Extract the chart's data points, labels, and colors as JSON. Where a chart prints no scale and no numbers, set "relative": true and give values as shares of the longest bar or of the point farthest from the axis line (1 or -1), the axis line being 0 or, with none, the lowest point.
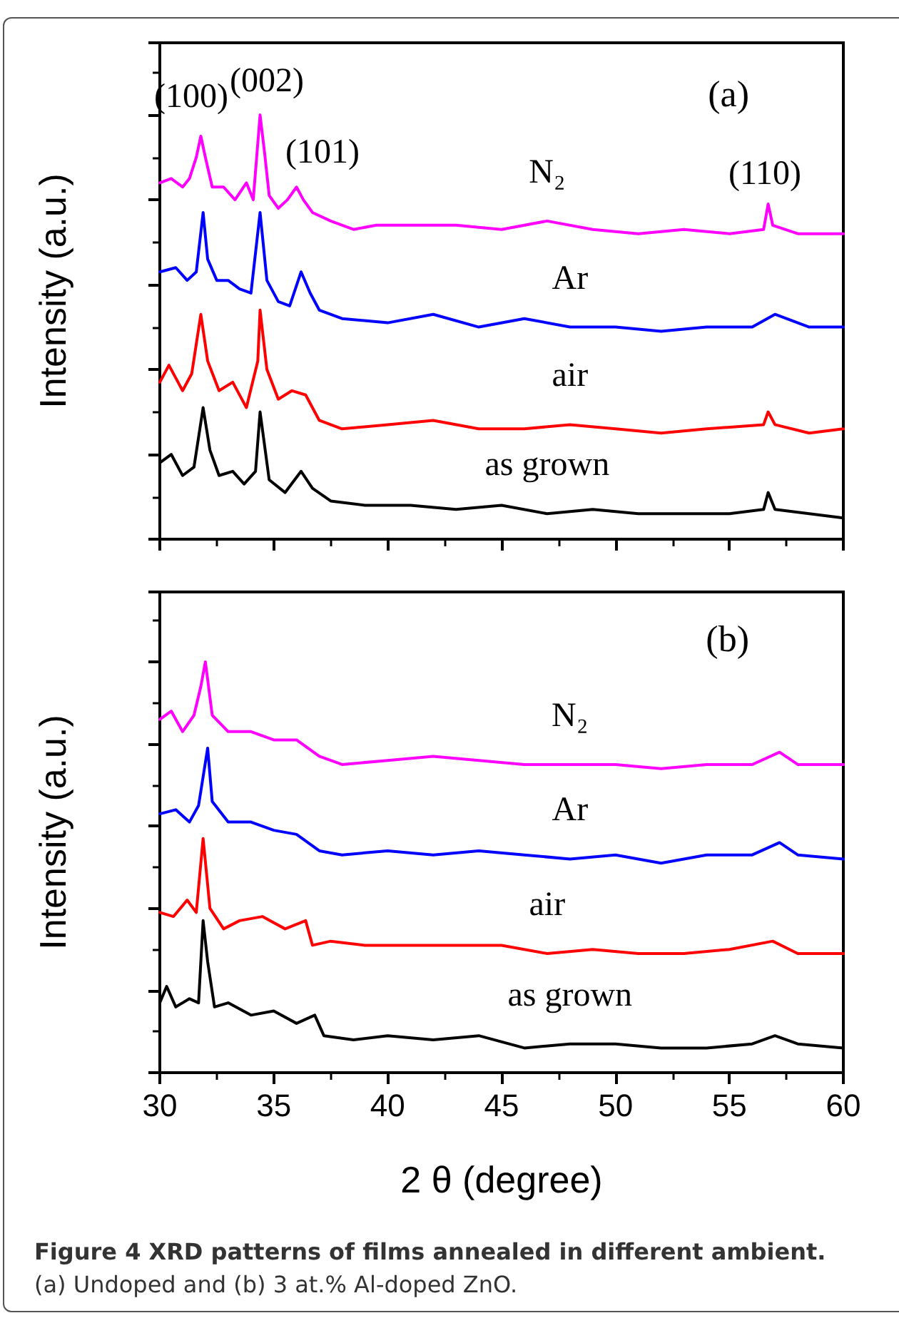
{
  "chart_data": [
    {
      "type": "line",
      "title": "(a)",
      "ylabel": "Intensity (a.u.)",
      "relative": true,
      "xlim": [
        30,
        60
      ],
      "xticks": [
        30,
        35,
        40,
        45,
        50,
        55,
        60
      ],
      "tick_labels": false,
      "marker": "none",
      "line_style": "solid",
      "grid": false,
      "legend": false,
      "annotations": [
        "(100)",
        "(002)",
        "(101)",
        "(110)"
      ],
      "series": [
        {
          "name": "N₂",
          "color": "#ff00ff",
          "x": [
            30,
            30.5,
            31,
            31.3,
            31.6,
            31.8,
            32,
            32.3,
            32.8,
            33.3,
            33.8,
            34.1,
            34.4,
            34.6,
            34.8,
            35.2,
            35.6,
            36,
            36.3,
            36.7,
            37.5,
            38.5,
            39.5,
            41,
            43,
            45,
            47,
            49,
            51,
            53,
            55,
            56.5,
            56.7,
            56.9,
            58,
            60
          ],
          "values": [
            0.84,
            0.85,
            0.83,
            0.85,
            0.9,
            0.95,
            0.9,
            0.83,
            0.83,
            0.8,
            0.84,
            0.8,
            1,
            0.91,
            0.81,
            0.78,
            0.8,
            0.83,
            0.8,
            0.77,
            0.75,
            0.73,
            0.74,
            0.74,
            0.74,
            0.73,
            0.75,
            0.73,
            0.72,
            0.73,
            0.72,
            0.73,
            0.79,
            0.74,
            0.72,
            0.72
          ]
        },
        {
          "name": "Ar",
          "color": "#0000ff",
          "x": [
            30,
            30.7,
            31.2,
            31.6,
            31.9,
            32.1,
            32.5,
            33,
            33.5,
            34,
            34.4,
            34.7,
            35.2,
            35.7,
            36.2,
            36.6,
            37,
            38,
            40,
            42,
            44,
            46,
            48,
            50,
            52,
            54,
            56,
            57,
            58.5,
            60
          ],
          "values": [
            0.63,
            0.64,
            0.61,
            0.63,
            0.77,
            0.66,
            0.61,
            0.61,
            0.59,
            0.58,
            0.77,
            0.61,
            0.56,
            0.55,
            0.63,
            0.58,
            0.54,
            0.52,
            0.51,
            0.53,
            0.5,
            0.52,
            0.5,
            0.5,
            0.49,
            0.5,
            0.5,
            0.53,
            0.5,
            0.5
          ]
        },
        {
          "name": "air",
          "color": "#ff0000",
          "x": [
            30,
            30.4,
            31,
            31.4,
            31.8,
            32.1,
            32.6,
            33.2,
            33.8,
            34.3,
            34.4,
            34.7,
            35.2,
            35.8,
            36.4,
            37,
            38,
            40,
            42,
            44,
            46,
            48,
            50,
            52,
            54,
            56.5,
            56.7,
            57,
            58.5,
            60
          ],
          "values": [
            0.37,
            0.41,
            0.35,
            0.39,
            0.53,
            0.42,
            0.35,
            0.37,
            0.31,
            0.42,
            0.54,
            0.4,
            0.33,
            0.35,
            0.34,
            0.28,
            0.26,
            0.27,
            0.28,
            0.26,
            0.26,
            0.27,
            0.26,
            0.25,
            0.26,
            0.27,
            0.3,
            0.27,
            0.25,
            0.26
          ]
        },
        {
          "name": "as grown",
          "color": "#000000",
          "x": [
            30,
            30.5,
            31,
            31.5,
            31.9,
            32.2,
            32.6,
            33.2,
            33.7,
            34.2,
            34.4,
            34.8,
            35.5,
            36.2,
            36.7,
            37.5,
            39,
            41,
            43,
            45,
            47,
            49,
            51,
            53,
            55,
            56.5,
            56.7,
            57,
            58.5,
            60
          ],
          "values": [
            0.18,
            0.2,
            0.15,
            0.17,
            0.31,
            0.21,
            0.15,
            0.16,
            0.13,
            0.16,
            0.3,
            0.14,
            0.11,
            0.16,
            0.12,
            0.09,
            0.08,
            0.08,
            0.07,
            0.08,
            0.06,
            0.07,
            0.06,
            0.06,
            0.06,
            0.07,
            0.11,
            0.07,
            0.06,
            0.05
          ]
        }
      ]
    },
    {
      "type": "line",
      "title": "(b)",
      "ylabel": "Intensity (a.u.)",
      "xlabel": "2 θ (degree)",
      "relative": true,
      "xlim": [
        30,
        60
      ],
      "xticks": [
        30,
        35,
        40,
        45,
        50,
        55,
        60
      ],
      "tick_labels": "x",
      "marker": "none",
      "line_style": "solid",
      "grid": false,
      "legend": false,
      "annotations": [
        "Figure 4 XRD patterns of films annealed in different ambient.",
        "(a) Undoped and (b) 3 at.% Al-doped ZnO."
      ],
      "series": [
        {
          "name": "N₂",
          "color": "#ff00ff",
          "x": [
            30,
            30.5,
            31,
            31.5,
            31.8,
            32,
            32.3,
            33,
            34,
            35,
            36,
            36.5,
            37,
            38,
            40,
            42,
            44,
            46,
            48,
            50,
            52,
            54,
            56,
            57.2,
            58,
            60
          ],
          "values": [
            0.86,
            0.88,
            0.83,
            0.87,
            0.94,
            1,
            0.87,
            0.83,
            0.83,
            0.81,
            0.81,
            0.79,
            0.77,
            0.75,
            0.76,
            0.77,
            0.76,
            0.75,
            0.75,
            0.75,
            0.74,
            0.75,
            0.75,
            0.78,
            0.75,
            0.75
          ]
        },
        {
          "name": "Ar",
          "color": "#0000ff",
          "x": [
            30,
            30.7,
            31.3,
            31.7,
            32.1,
            32.3,
            33,
            34,
            35,
            36,
            37,
            38,
            40,
            42,
            44,
            46,
            48,
            50,
            52,
            54,
            56,
            57.2,
            58,
            60
          ],
          "values": [
            0.63,
            0.64,
            0.61,
            0.65,
            0.79,
            0.66,
            0.61,
            0.61,
            0.59,
            0.58,
            0.54,
            0.53,
            0.54,
            0.53,
            0.54,
            0.53,
            0.52,
            0.53,
            0.51,
            0.53,
            0.53,
            0.56,
            0.53,
            0.52
          ]
        },
        {
          "name": "air",
          "color": "#ff0000",
          "x": [
            30,
            30.6,
            31.2,
            31.6,
            31.9,
            32.2,
            32.8,
            33.5,
            34.5,
            35.5,
            36.4,
            36.7,
            37.5,
            39,
            41,
            43,
            45,
            47,
            49,
            51,
            53,
            55,
            56.9,
            58,
            60
          ],
          "values": [
            0.39,
            0.38,
            0.42,
            0.39,
            0.57,
            0.4,
            0.35,
            0.37,
            0.38,
            0.35,
            0.37,
            0.31,
            0.32,
            0.31,
            0.31,
            0.31,
            0.31,
            0.29,
            0.3,
            0.29,
            0.29,
            0.3,
            0.32,
            0.29,
            0.29
          ]
        },
        {
          "name": "as grown",
          "color": "#000000",
          "x": [
            30,
            30.3,
            30.7,
            31.3,
            31.7,
            31.9,
            32.1,
            32.4,
            33,
            34,
            35,
            36,
            36.8,
            37.2,
            38.5,
            40,
            42,
            44,
            46,
            48,
            50,
            52,
            54,
            56,
            57,
            58,
            60
          ],
          "values": [
            0.17,
            0.21,
            0.16,
            0.18,
            0.17,
            0.37,
            0.27,
            0.16,
            0.17,
            0.14,
            0.15,
            0.12,
            0.14,
            0.09,
            0.08,
            0.09,
            0.08,
            0.09,
            0.06,
            0.07,
            0.07,
            0.06,
            0.06,
            0.07,
            0.09,
            0.07,
            0.06
          ]
        }
      ]
    }
  ]
}
